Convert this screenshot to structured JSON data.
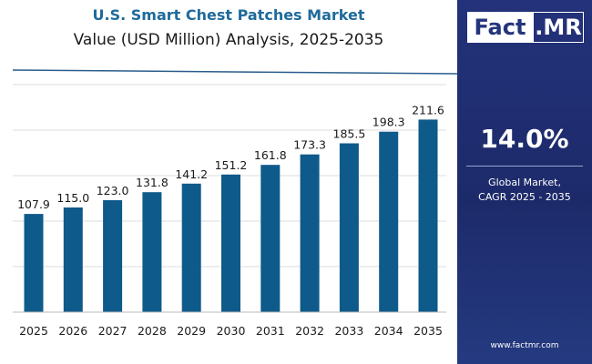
{
  "chart_data": {
    "type": "bar",
    "title": "U.S. Smart Chest Patches Market",
    "subtitle": "Value (USD Million) Analysis, 2025-2035",
    "categories": [
      "2025",
      "2026",
      "2027",
      "2028",
      "2029",
      "2030",
      "2031",
      "2032",
      "2033",
      "2034",
      "2035"
    ],
    "values": [
      107.9,
      115.0,
      123.0,
      131.8,
      141.2,
      151.2,
      161.8,
      173.3,
      185.5,
      198.3,
      211.6
    ],
    "value_labels": [
      "107.9",
      "115.0",
      "123.0",
      "131.8",
      "141.2",
      "151.2",
      "161.8",
      "173.3",
      "185.5",
      "198.3",
      "211.6"
    ],
    "ylim": [
      0,
      250
    ],
    "grid": true,
    "xlabel": "",
    "ylabel": ""
  },
  "colors": {
    "bar": "#0e5a8a",
    "title": "#1f6b9c",
    "sidebar": "#23327a",
    "grid": "#dcdcdc",
    "accent_line": "#2a5d8c"
  },
  "sidebar": {
    "logo_fact": "Fact",
    "logo_mr": ".MR",
    "cagr_value": "14.0%",
    "cagr_label_line1": "Global Market,",
    "cagr_label_line2": "CAGR 2025 - 2035",
    "website": "www.factmr.com"
  }
}
